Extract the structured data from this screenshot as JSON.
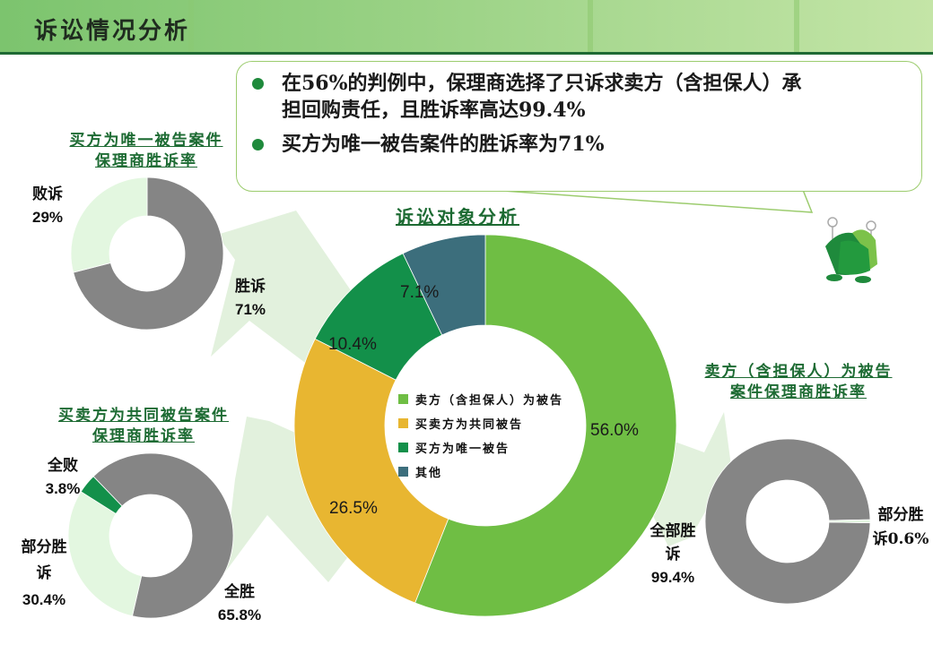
{
  "header": {
    "title": "诉讼情况分析"
  },
  "callout": {
    "bullets": [
      {
        "line1": "在56%的判例中，保理商选择了只诉求卖方（含担保人）承",
        "line2": "担回购责任，且胜诉率高达99.4%"
      },
      {
        "line1": "买方为唯一被告案件的胜诉率为71%"
      }
    ]
  },
  "colors": {
    "seller": "#6fbe44",
    "joint": "#e8b631",
    "buyer": "#13904a",
    "other": "#3c6e7c",
    "gray": "#858585",
    "light": "#e3f7e0",
    "title_green": "#1d6b33",
    "header_line": "#1f6a34"
  },
  "chart_data": [
    {
      "type": "pie",
      "variant": "donut",
      "title": "诉讼对象分析",
      "categories": [
        "卖方（含担保人）为被告",
        "买卖方为共同被告",
        "买方为唯一被告",
        "其他"
      ],
      "values": [
        56.0,
        26.5,
        10.4,
        7.1
      ],
      "labels": [
        "56.0%",
        "26.5%",
        "10.4%",
        "7.1%"
      ],
      "legend_position": "center"
    },
    {
      "type": "pie",
      "variant": "donut",
      "title": "买方为唯一被告案件保理商胜诉率",
      "categories": [
        "胜诉",
        "败诉"
      ],
      "values": [
        71,
        29
      ],
      "labels": [
        "71%",
        "29%"
      ]
    },
    {
      "type": "pie",
      "variant": "donut",
      "title": "买卖方为共同被告案件保理商胜诉率",
      "categories": [
        "全胜",
        "部分胜诉",
        "全败"
      ],
      "values": [
        65.8,
        30.4,
        3.8
      ],
      "labels": [
        "65.8%",
        "30.4%",
        "3.8%"
      ]
    },
    {
      "type": "pie",
      "variant": "donut",
      "title": "卖方（含担保人）为被告案件保理商胜诉率",
      "categories": [
        "全部胜诉",
        "部分胜诉"
      ],
      "values": [
        99.4,
        0.6
      ],
      "labels": [
        "99.4%",
        "0.6%"
      ]
    }
  ],
  "main_chart": {
    "title": "诉讼对象分析",
    "legend": [
      "卖方（含担保人）为被告",
      "买卖方为共同被告",
      "买方为唯一被告",
      "其他"
    ],
    "labels": {
      "seller": "56.0%",
      "joint": "26.5%",
      "buyer": "10.4%",
      "other": "7.1%"
    }
  },
  "buyer_chart": {
    "title_line1": "买方为唯一被告案件",
    "title_line2": "保理商胜诉率",
    "lose_name": "败诉",
    "lose_pct": "29%",
    "win_name": "胜诉",
    "win_pct": "71%"
  },
  "joint_chart": {
    "title_line1": "买卖方为共同被告案件",
    "title_line2": "保理商胜诉率",
    "all_lose_name": "全败",
    "all_lose_pct": "3.8%",
    "partial_name1": "部分胜",
    "partial_name2": "诉",
    "partial_pct": "30.4%",
    "all_win_name": "全胜",
    "all_win_pct": "65.8%"
  },
  "seller_chart": {
    "title_line1": "卖方（含担保人）为被告",
    "title_line2": "案件保理商胜诉率",
    "all_win_name1": "全部胜",
    "all_win_name2": "诉",
    "all_win_pct": "99.4%",
    "partial_name1": "部分胜",
    "partial_name2": "诉0.6%"
  }
}
